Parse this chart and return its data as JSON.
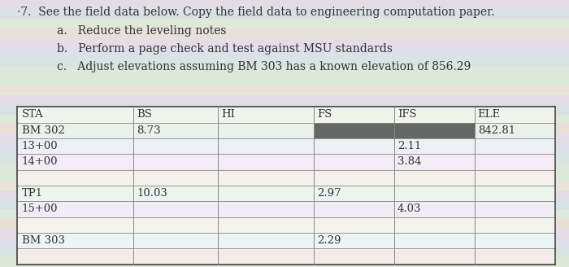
{
  "title_line": "·7.  See the field data below. Copy the field data to engineering computation paper.",
  "sub_a": "a.   Reduce the leveling notes",
  "sub_b": "b.   Perform a page check and test against MSU standards",
  "sub_c": "c.   Adjust elevations assuming BM 303 has a known elevation of 856.29",
  "headers": [
    "STA",
    "BS",
    "HI",
    "FS",
    "IFS",
    "ELE"
  ],
  "rows": [
    [
      "BM 302",
      "8.73",
      "",
      "",
      "",
      "842.81"
    ],
    [
      "13+00",
      "",
      "",
      "",
      "2.11",
      ""
    ],
    [
      "14+00",
      "",
      "",
      "",
      "3.84",
      ""
    ],
    [
      "",
      "",
      "",
      "",
      "",
      ""
    ],
    [
      "TP1",
      "10.03",
      "",
      "2.97",
      "",
      ""
    ],
    [
      "15+00",
      "",
      "",
      "",
      "4.03",
      ""
    ],
    [
      "",
      "",
      "",
      "",
      "",
      ""
    ],
    [
      "BM 303",
      "",
      "",
      "2.29",
      "",
      ""
    ],
    [
      "",
      "",
      "",
      "",
      "",
      ""
    ]
  ],
  "shaded_cells_row": 0,
  "shaded_cells_cols": [
    3,
    4
  ],
  "shaded_color": "#666666",
  "text_color": "#333333",
  "header_fontsize": 9.5,
  "body_fontsize": 9.5,
  "title_fontsize": 10,
  "col_props": [
    1.45,
    1.05,
    1.2,
    1.0,
    1.0,
    1.0
  ],
  "stripe_colors": [
    "#e8f0e0",
    "#ddeedd",
    "#e0eae8",
    "#e8e8f0",
    "#f0e8f0",
    "#f0f0e0"
  ],
  "bg_color": "#d8d8d0",
  "table_border_color": "#444444",
  "table_line_color": "#888888"
}
